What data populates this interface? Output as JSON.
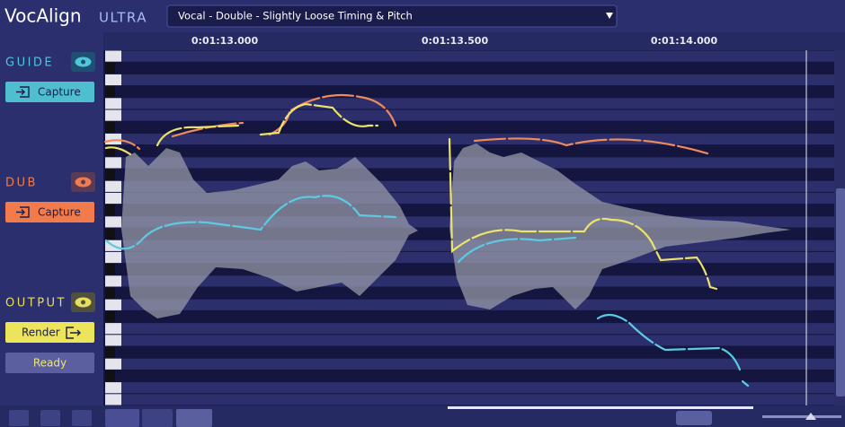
{
  "header": {
    "logo": "VocAlign",
    "logo_suffix": "ULTRA",
    "preset": "Vocal - Double - Slightly Loose Timing & Pitch"
  },
  "timeline": {
    "labels": [
      "0:01:13.000",
      "0:01:13.500",
      "0:01:14.000"
    ]
  },
  "sidebar": {
    "guide": {
      "label": "GUIDE",
      "button": "Capture"
    },
    "dub": {
      "label": "DUB",
      "button": "Capture"
    },
    "output": {
      "label": "OUTPUT",
      "button": "Render",
      "status": "Ready"
    }
  }
}
